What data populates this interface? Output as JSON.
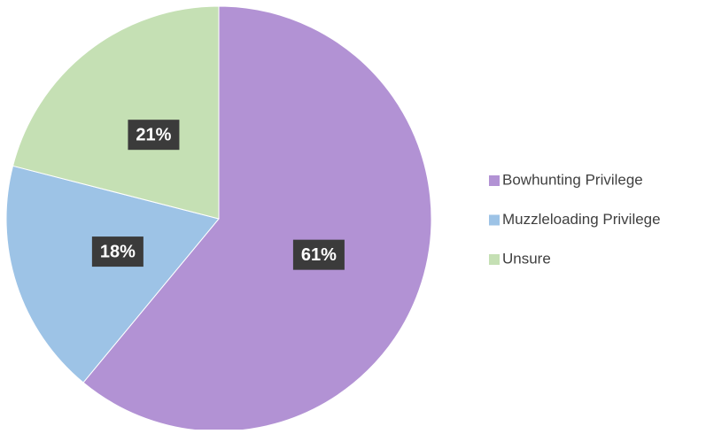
{
  "chart_data": {
    "type": "pie",
    "categories": [
      "Bowhunting Privilege",
      "Muzzleloading Privilege",
      "Unsure"
    ],
    "values": [
      61,
      18,
      21
    ],
    "value_labels": [
      "61%",
      "18%",
      "21%"
    ],
    "colors": [
      "#b292d4",
      "#9dc3e6",
      "#c5e0b4"
    ],
    "legend": "right"
  }
}
